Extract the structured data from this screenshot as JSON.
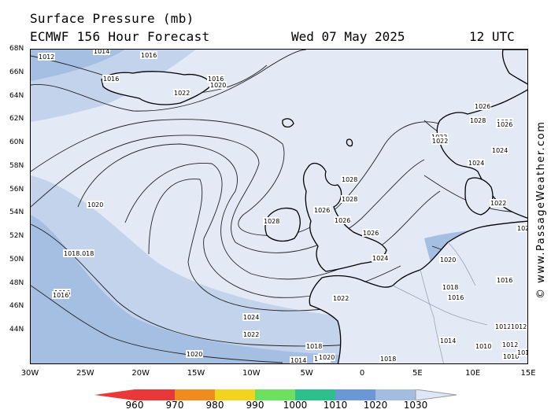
{
  "header": {
    "title": "Surface Pressure (mb)",
    "model": "ECMWF 156 Hour Forecast",
    "date": "Wed 07 May 2025",
    "time": "12 UTC"
  },
  "credit": "© www.PassageWeather.com",
  "lat_labels": [
    "68N",
    "66N",
    "64N",
    "62N",
    "60N",
    "58N",
    "56N",
    "54N",
    "52N",
    "50N",
    "48N",
    "46N",
    "44N"
  ],
  "lon_labels": [
    "30W",
    "25W",
    "20W",
    "15W",
    "10W",
    "5W",
    "0",
    "5E",
    "10E",
    "15E"
  ],
  "isobar_labels": [
    "1012",
    "1014",
    "1016",
    "1016",
    "1016",
    "1020",
    "1022",
    "1018",
    "1016",
    "1020",
    "1018",
    "1016",
    "1014",
    "1018",
    "1024",
    "1022",
    "1020",
    "1018",
    "1016",
    "1014",
    "1028",
    "1026",
    "1026",
    "1026",
    "1024",
    "1022",
    "1020",
    "1018",
    "1028",
    "1028",
    "1026",
    "1026",
    "1028",
    "1022",
    "1022",
    "1024",
    "1024",
    "1026",
    "1026",
    "1022",
    "1020",
    "1020",
    "1018",
    "1016",
    "1016",
    "1014",
    "1012",
    "1010",
    "1010",
    "1012",
    "1012",
    "1010"
  ],
  "scale": {
    "ticks": [
      "960",
      "970",
      "980",
      "990",
      "1000",
      "1010",
      "1020",
      "1030"
    ],
    "colors": [
      "#e8383a",
      "#f08c1e",
      "#f2d41e",
      "#6ee060",
      "#2ec08c",
      "#6a98d6",
      "#a3bde0",
      "#dde7f5"
    ]
  },
  "colors": {
    "high": "#e3eaf6",
    "mid": "#c4d3ec",
    "low": "#a5bfe2",
    "land": "#e3eaf6"
  }
}
